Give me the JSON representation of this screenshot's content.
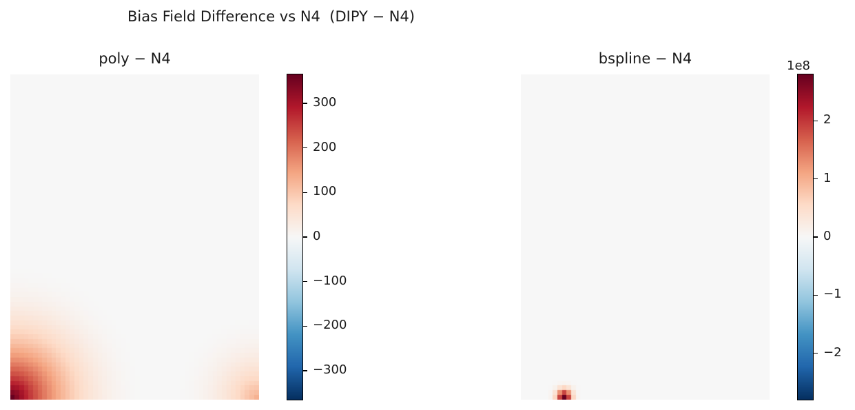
{
  "figure": {
    "suptitle": "Bias Field Difference vs N4  (DIPY − N4)"
  },
  "chart_data": [
    {
      "type": "heatmap",
      "title": "poly − N4",
      "colormap": "RdBu_r",
      "vlim": [
        -365,
        365
      ],
      "colorbar": {
        "ticks": [
          300,
          200,
          100,
          0,
          -100,
          -200,
          -300
        ],
        "tick_labels": [
          "300",
          "200",
          "100",
          "0",
          "−100",
          "−200",
          "−300"
        ],
        "offset_text": ""
      },
      "field": {
        "grid": [
          54,
          70
        ],
        "description_values": "near zero everywhere; positive rise toward bottom corners",
        "corner_peaks": [
          {
            "corner": "bottom-left",
            "value": 365,
            "radius_frac": 0.55
          },
          {
            "corner": "bottom-right",
            "value": 130,
            "radius_frac": 0.35
          }
        ]
      }
    },
    {
      "type": "heatmap",
      "title": "bspline − N4",
      "colormap": "RdBu_r",
      "vlim": [
        -280000000.0,
        280000000.0
      ],
      "colorbar": {
        "ticks": [
          2,
          1,
          0,
          -1,
          -2
        ],
        "tick_labels": [
          "2",
          "1",
          "0",
          "−1",
          "−2"
        ],
        "offset_text": "1e8"
      },
      "field": {
        "grid": [
          54,
          70
        ],
        "hotspot": {
          "col": 9,
          "row": 69,
          "value": 280000000.0,
          "spread_cells": 1.6
        }
      }
    }
  ]
}
